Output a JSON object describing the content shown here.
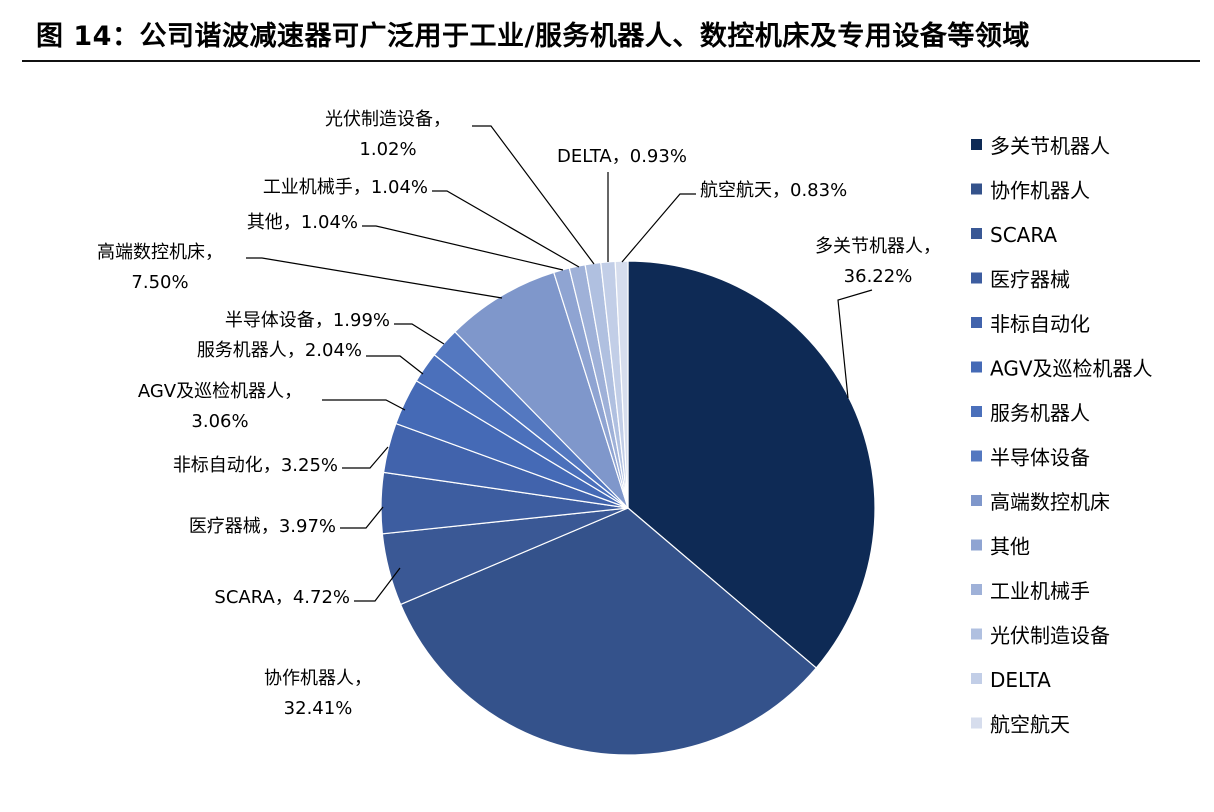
{
  "figure_title": "图 14：公司谐波减速器可广泛用于工业/服务机器人、数控机床及专用设备等领域",
  "chart_data": {
    "type": "pie",
    "categories": [
      "多关节机器人",
      "协作机器人",
      "SCARA",
      "医疗器械",
      "非标自动化",
      "AGV及巡检机器人",
      "服务机器人",
      "半导体设备",
      "高端数控机床",
      "其他",
      "工业机械手",
      "光伏制造设备",
      "DELTA",
      "航空航天"
    ],
    "values": [
      36.22,
      32.41,
      4.72,
      3.97,
      3.25,
      3.06,
      2.04,
      1.99,
      7.5,
      1.04,
      1.04,
      1.02,
      0.93,
      0.83
    ],
    "value_labels": [
      "36.22%",
      "32.41%",
      "4.72%",
      "3.97%",
      "3.25%",
      "3.06%",
      "2.04%",
      "1.99%",
      "7.50%",
      "1.04%",
      "1.04%",
      "1.02%",
      "0.93%",
      "0.83%"
    ],
    "colors": [
      "#0e2a55",
      "#34528b",
      "#3a5895",
      "#3d5da0",
      "#4163ac",
      "#456ab6",
      "#4b70bb",
      "#5478c0",
      "#7f97cb",
      "#8fa4d2",
      "#9fb1d8",
      "#b0c0e0",
      "#c2cee7",
      "#d6dded"
    ],
    "legend_position": "right",
    "start_angle_deg": 0,
    "direction": "clockwise"
  }
}
